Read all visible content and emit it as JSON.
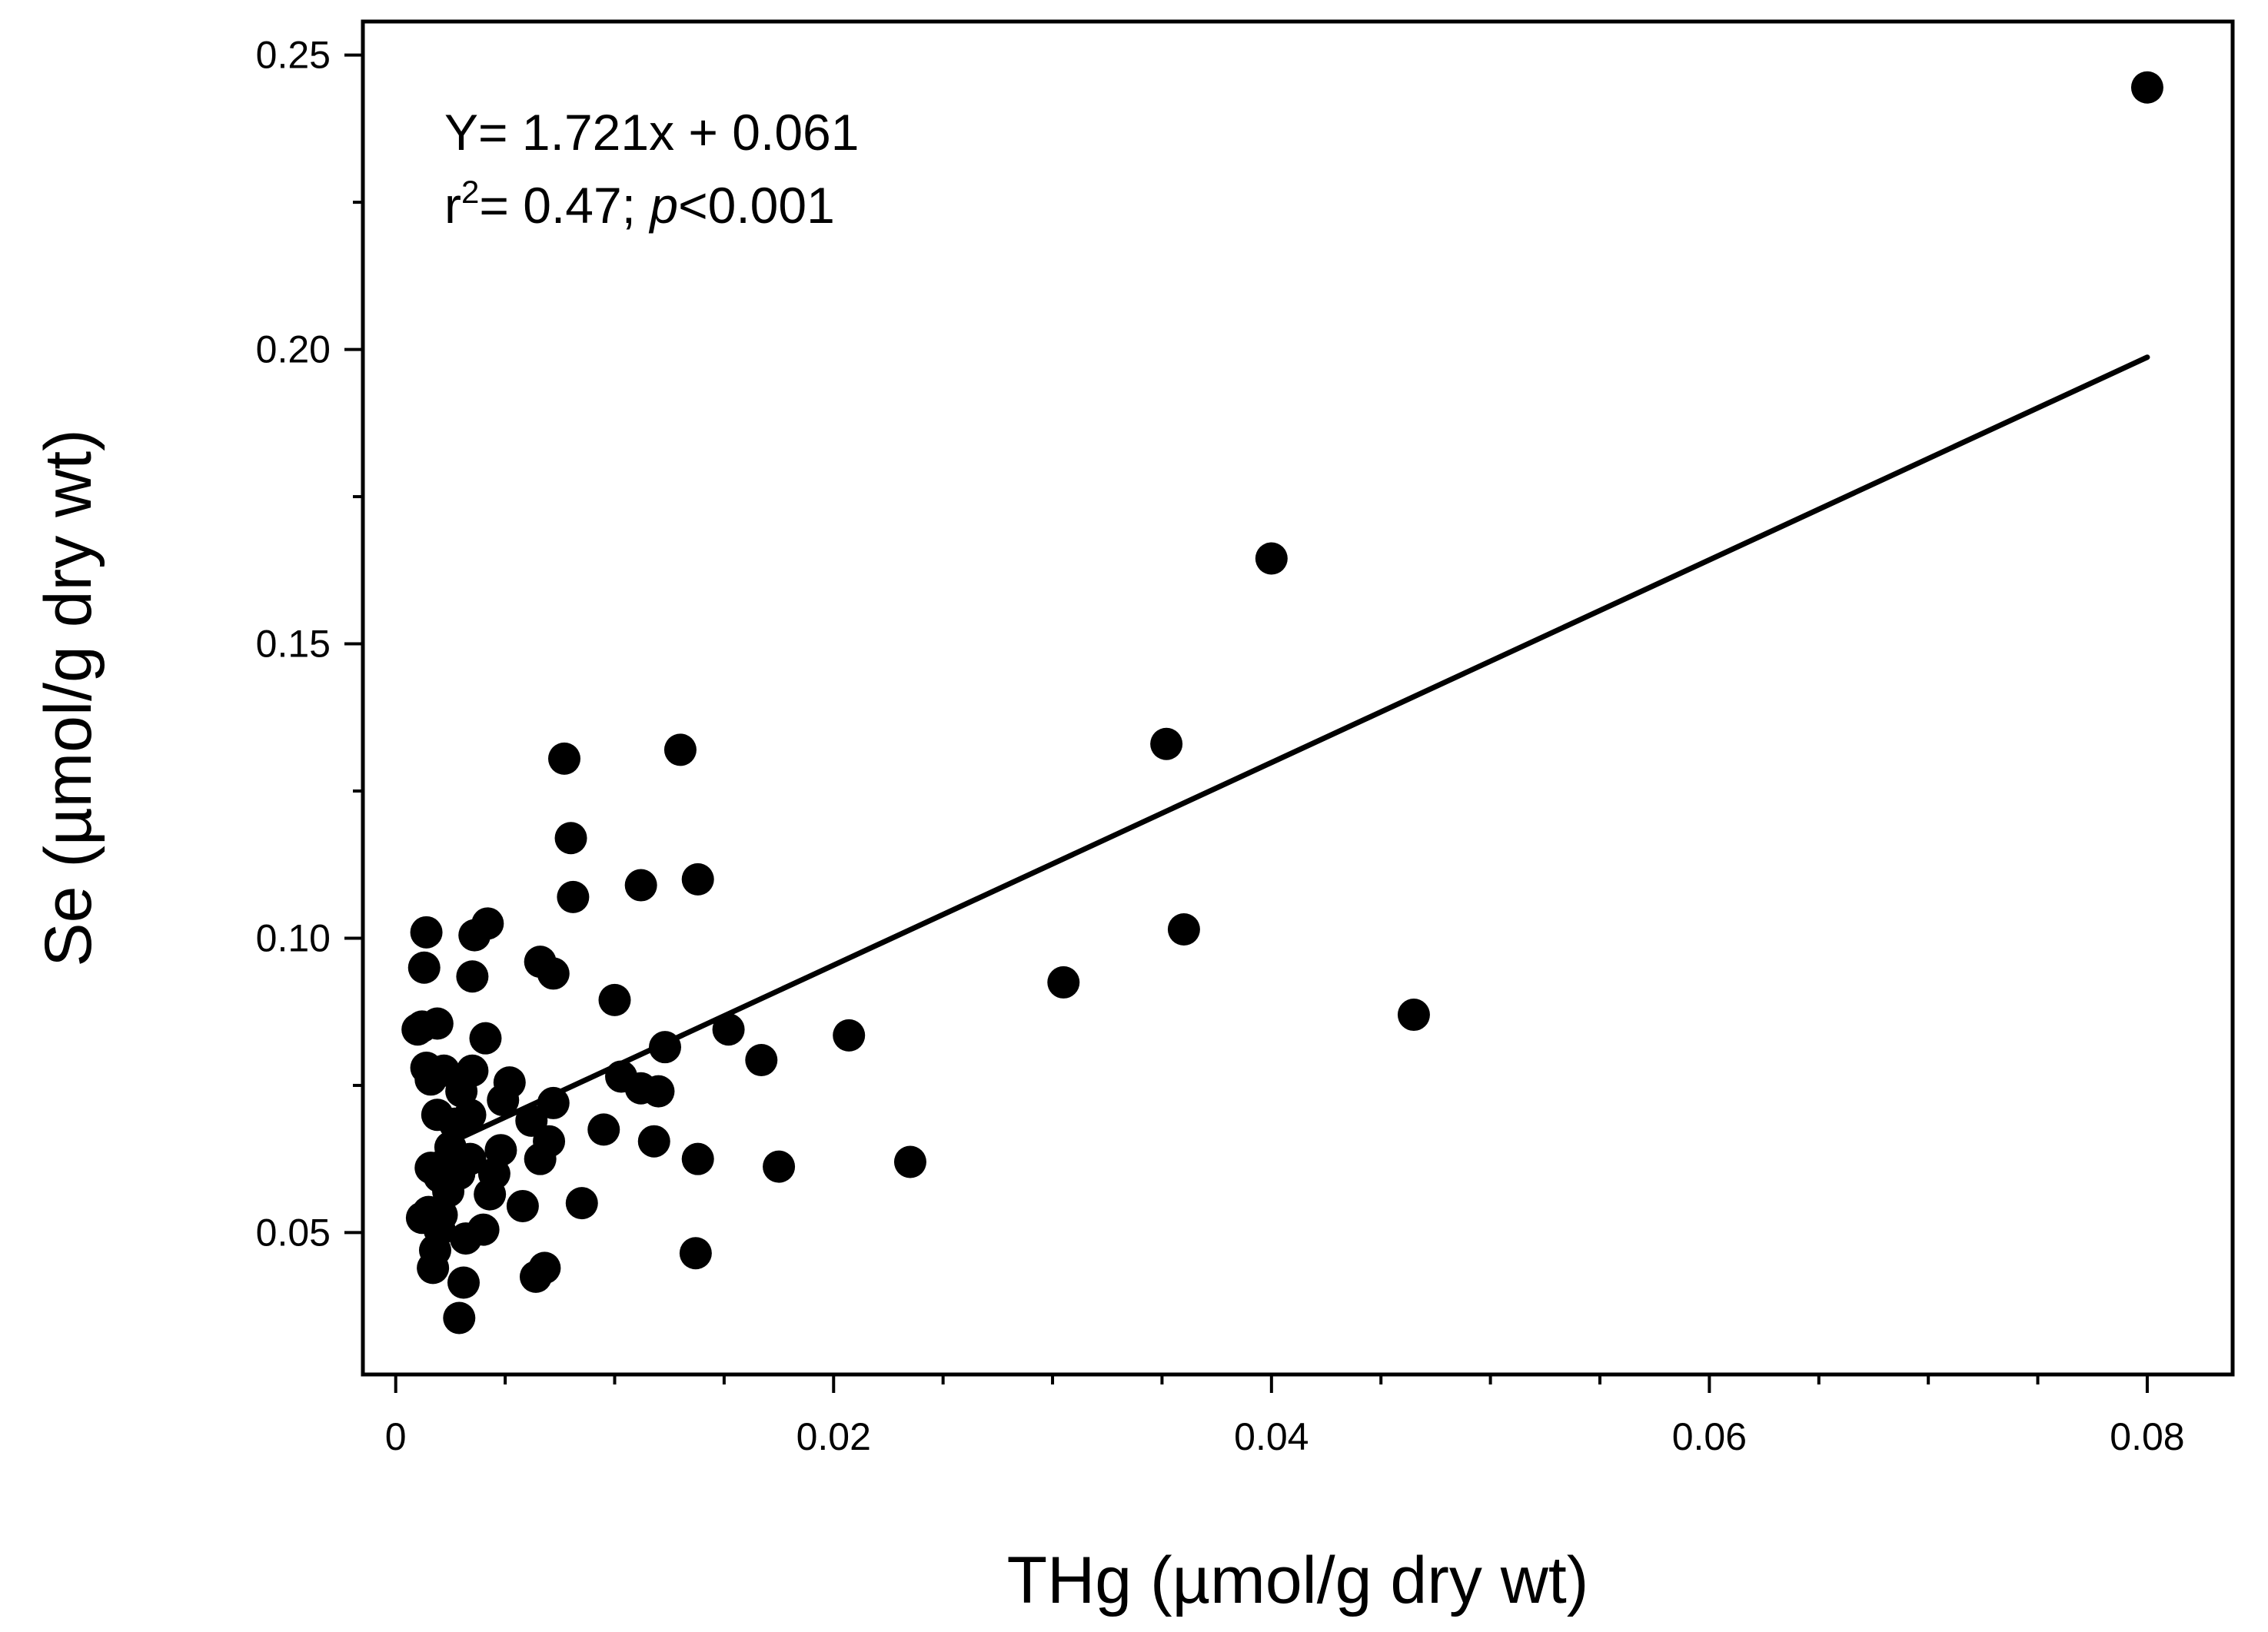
{
  "chart_data": {
    "type": "scatter",
    "xlabel": "THg (µmol/g dry wt)",
    "ylabel": "Se (µmol/g dry wt)",
    "xlim": [
      -0.0015,
      0.0839
    ],
    "ylim": [
      0.0259,
      0.2557
    ],
    "x_ticks": [
      0,
      0.02,
      0.04,
      0.06,
      0.08
    ],
    "x_tick_labels": [
      "0",
      "0.02",
      "0.04",
      "0.06",
      "0.08"
    ],
    "y_ticks": [
      0.05,
      0.1,
      0.15,
      0.2,
      0.25
    ],
    "y_tick_labels": [
      "0.05",
      "0.10",
      "0.15",
      "0.20",
      "0.25"
    ],
    "x_minor_step": 0.005,
    "y_minor_step": 0.025,
    "grid": false,
    "annotation": {
      "equation": "Y= 1.721x + 0.061",
      "r_prefix": "r",
      "r_sup": "2",
      "r_value": "= 0.47; ",
      "p_symbol": "p",
      "p_value": "<0.001"
    },
    "regression": {
      "slope": 1.721,
      "intercept": 0.061,
      "x_range": [
        0.0022,
        0.08
      ]
    },
    "points": [
      [
        0.08,
        0.2445
      ],
      [
        0.04,
        0.1645
      ],
      [
        0.0352,
        0.133
      ],
      [
        0.036,
        0.1015
      ],
      [
        0.0465,
        0.087
      ],
      [
        0.0305,
        0.0925
      ],
      [
        0.0235,
        0.062
      ],
      [
        0.0207,
        0.0835
      ],
      [
        0.0175,
        0.0612
      ],
      [
        0.0167,
        0.0793
      ],
      [
        0.0152,
        0.0845
      ],
      [
        0.0138,
        0.11
      ],
      [
        0.013,
        0.132
      ],
      [
        0.0138,
        0.0625
      ],
      [
        0.0137,
        0.0465
      ],
      [
        0.0123,
        0.0815
      ],
      [
        0.012,
        0.074
      ],
      [
        0.0118,
        0.0655
      ],
      [
        0.0112,
        0.109
      ],
      [
        0.0112,
        0.0745
      ],
      [
        0.0103,
        0.0765
      ],
      [
        0.01,
        0.0895
      ],
      [
        0.0095,
        0.0675
      ],
      [
        0.0085,
        0.055
      ],
      [
        0.0081,
        0.107
      ],
      [
        0.008,
        0.117
      ],
      [
        0.0077,
        0.1305
      ],
      [
        0.0072,
        0.094
      ],
      [
        0.0072,
        0.072
      ],
      [
        0.007,
        0.0655
      ],
      [
        0.0066,
        0.096
      ],
      [
        0.0066,
        0.0625
      ],
      [
        0.0068,
        0.044
      ],
      [
        0.0064,
        0.0425
      ],
      [
        0.0062,
        0.069
      ],
      [
        0.0058,
        0.0545
      ],
      [
        0.0052,
        0.0755
      ],
      [
        0.0049,
        0.0725
      ],
      [
        0.0048,
        0.064
      ],
      [
        0.0045,
        0.06
      ],
      [
        0.0043,
        0.0565
      ],
      [
        0.0042,
        0.1025
      ],
      [
        0.0041,
        0.083
      ],
      [
        0.004,
        0.0505
      ],
      [
        0.0036,
        0.1005
      ],
      [
        0.0035,
        0.0935
      ],
      [
        0.0035,
        0.0775
      ],
      [
        0.0034,
        0.07
      ],
      [
        0.0034,
        0.0625
      ],
      [
        0.0032,
        0.049
      ],
      [
        0.0031,
        0.0415
      ],
      [
        0.003,
        0.074
      ],
      [
        0.0029,
        0.06
      ],
      [
        0.0029,
        0.0355
      ],
      [
        0.0027,
        0.0685
      ],
      [
        0.0025,
        0.0645
      ],
      [
        0.0024,
        0.057
      ],
      [
        0.0022,
        0.0775
      ],
      [
        0.0022,
        0.0615
      ],
      [
        0.0021,
        0.053
      ],
      [
        0.002,
        0.0595
      ],
      [
        0.002,
        0.0505
      ],
      [
        0.0019,
        0.0855
      ],
      [
        0.0019,
        0.07
      ],
      [
        0.0018,
        0.047
      ],
      [
        0.0017,
        0.044
      ],
      [
        0.0016,
        0.076
      ],
      [
        0.0016,
        0.061
      ],
      [
        0.0015,
        0.0535
      ],
      [
        0.0014,
        0.101
      ],
      [
        0.0014,
        0.078
      ],
      [
        0.0013,
        0.095
      ],
      [
        0.0012,
        0.085
      ],
      [
        0.0012,
        0.0525
      ],
      [
        0.001,
        0.0845
      ]
    ]
  }
}
